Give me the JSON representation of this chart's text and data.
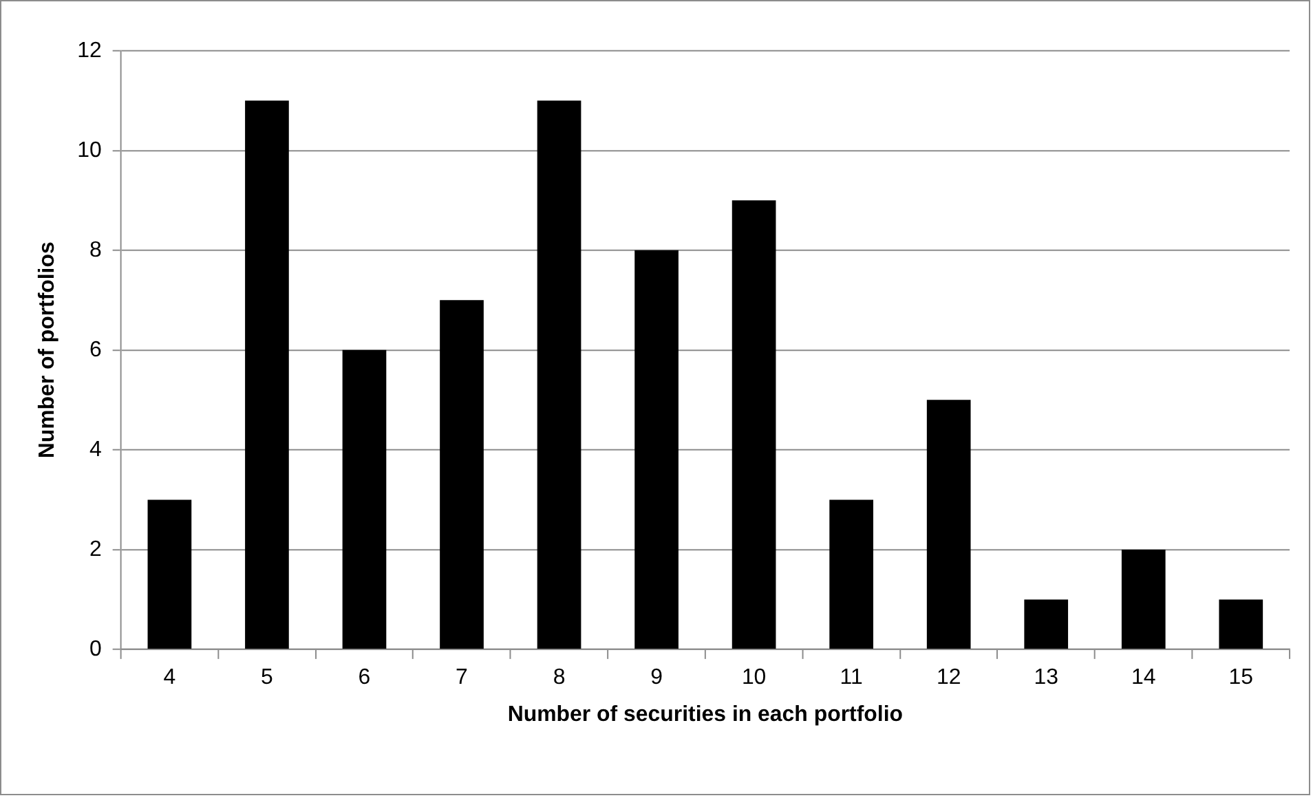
{
  "chart_data": {
    "type": "bar",
    "xlabel": "Number of securities in each portfolio",
    "ylabel": "Number of portfolios",
    "categories": [
      "4",
      "5",
      "6",
      "7",
      "8",
      "9",
      "10",
      "11",
      "12",
      "13",
      "14",
      "15"
    ],
    "values": [
      3,
      11,
      6,
      7,
      11,
      8,
      9,
      3,
      5,
      1,
      2,
      1
    ],
    "color": "#000000",
    "ylim": [
      0,
      12
    ],
    "yticks": [
      0,
      2,
      4,
      6,
      8,
      10,
      12
    ],
    "grid": "y",
    "legend": false
  }
}
